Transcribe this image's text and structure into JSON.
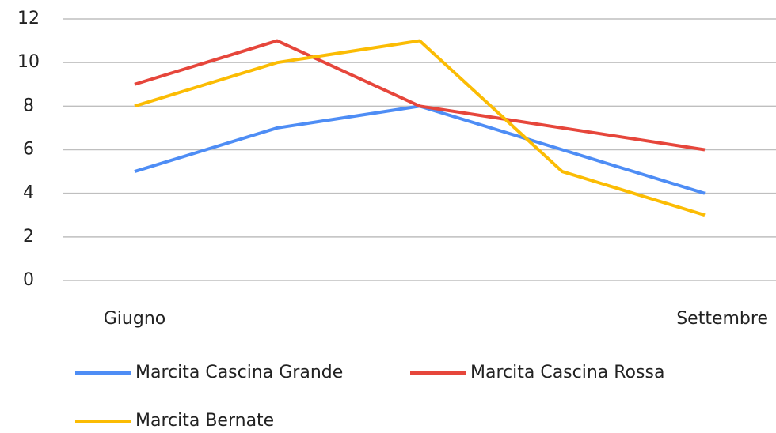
{
  "chart_data": {
    "type": "line",
    "categories": [
      "Giugno",
      null,
      null,
      null,
      "Settembre"
    ],
    "series": [
      {
        "name": "Marcita Cascina Grande",
        "color": "#4e8df5",
        "values": [
          5,
          7,
          8,
          6,
          4
        ]
      },
      {
        "name": "Marcita Cascina Rossa",
        "color": "#e6463b",
        "values": [
          9,
          11,
          8,
          7,
          6
        ]
      },
      {
        "name": "Marcita Bernate",
        "color": "#fbbc04",
        "values": [
          8,
          10,
          11,
          5,
          3
        ]
      }
    ],
    "ylim": [
      0,
      12
    ],
    "yticks": [
      0,
      2,
      4,
      6,
      8,
      10,
      12
    ],
    "grid": true,
    "legend": "bottom"
  }
}
